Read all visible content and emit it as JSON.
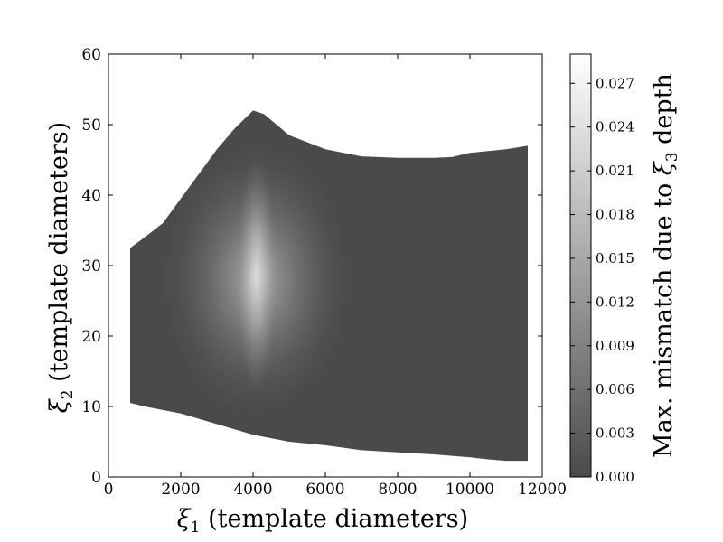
{
  "chart_data": {
    "type": "heatmap",
    "title": "",
    "xlabel": {
      "symbol": "ξ",
      "subscript": "1",
      "text": " (template diameters)"
    },
    "ylabel": {
      "symbol": "ξ",
      "subscript": "2",
      "text": " (template diameters)"
    },
    "colorbar_label": {
      "prefix": "Max. mismatch due to ",
      "symbol": "ξ",
      "subscript": "3",
      "suffix": " depth"
    },
    "xlim": [
      0,
      12000
    ],
    "ylim": [
      0,
      60
    ],
    "clim": [
      0.0,
      0.029
    ],
    "x_ticks": [
      "0",
      "2000",
      "4000",
      "6000",
      "8000",
      "10000",
      "12000"
    ],
    "y_ticks": [
      "0",
      "10",
      "20",
      "30",
      "40",
      "50",
      "60"
    ],
    "colorbar_ticks": [
      "0.000",
      "0.003",
      "0.006",
      "0.009",
      "0.012",
      "0.015",
      "0.018",
      "0.021",
      "0.024",
      "0.027"
    ],
    "colormap": {
      "low": "#4a4a4a",
      "high": "#ffffff"
    },
    "region_upper_boundary": [
      [
        600,
        32.5
      ],
      [
        1000,
        34
      ],
      [
        1500,
        36
      ],
      [
        2000,
        39.5
      ],
      [
        2500,
        43
      ],
      [
        3000,
        46.5
      ],
      [
        3500,
        49.5
      ],
      [
        4000,
        52
      ],
      [
        4300,
        51.5
      ],
      [
        5000,
        48.5
      ],
      [
        6000,
        46.5
      ],
      [
        7000,
        45.5
      ],
      [
        8000,
        45.3
      ],
      [
        9000,
        45.3
      ],
      [
        9500,
        45.4
      ],
      [
        10000,
        46
      ],
      [
        11000,
        46.5
      ],
      [
        11600,
        47
      ]
    ],
    "region_lower_boundary": [
      [
        600,
        10.5
      ],
      [
        1000,
        10
      ],
      [
        2000,
        9
      ],
      [
        3000,
        7.5
      ],
      [
        4000,
        6
      ],
      [
        5000,
        5
      ],
      [
        6000,
        4.5
      ],
      [
        7000,
        3.8
      ],
      [
        8000,
        3.5
      ],
      [
        9000,
        3.2
      ],
      [
        10000,
        2.8
      ],
      [
        10500,
        2.5
      ],
      [
        11000,
        2.3
      ],
      [
        11600,
        2.3
      ]
    ],
    "peak_region": {
      "x": 4100,
      "y": 28,
      "value": 0.027
    }
  }
}
